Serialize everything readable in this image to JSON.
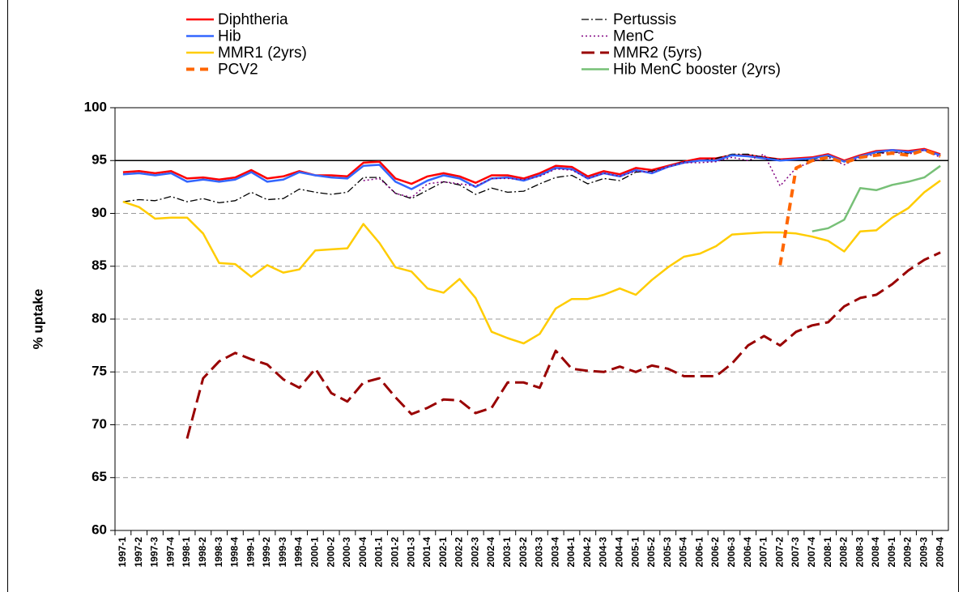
{
  "chart_data": {
    "type": "line",
    "y_label": "% uptake",
    "categories": [
      "1997-1",
      "1997-2",
      "1997-3",
      "1997-4",
      "1998-1",
      "1998-2",
      "1998-3",
      "1998-4",
      "1999-1",
      "1999-2",
      "1999-3",
      "1999-4",
      "2000-1",
      "2000-2",
      "2000-3",
      "2000-4",
      "2001-1",
      "2001-2",
      "2001-3",
      "2001-4",
      "2002-1",
      "2002-2",
      "2002-3",
      "2002-4",
      "2003-1",
      "2003-2",
      "2003-3",
      "2003-4",
      "2004-1",
      "2004-2",
      "2004-3",
      "2004-4",
      "2005-1",
      "2005-2",
      "2005-3",
      "2005-4",
      "2006-1",
      "2006-2",
      "2006-3",
      "2006-4",
      "2007-1",
      "2007-2",
      "2007-3",
      "2007-4",
      "2008-1",
      "2008-2",
      "2008-3",
      "2008-4",
      "2009-1",
      "2009-2",
      "2009-3",
      "2009-4"
    ],
    "ylim": [
      60,
      100
    ],
    "yticks": [
      60,
      65,
      70,
      75,
      80,
      85,
      90,
      95,
      100
    ],
    "grid": true,
    "target_line": 95,
    "series": [
      {
        "name": "Diphtheria",
        "color": "#ff0000",
        "style": "solid",
        "values": [
          93.9,
          94.0,
          93.8,
          94.0,
          93.3,
          93.4,
          93.2,
          93.4,
          94.1,
          93.3,
          93.5,
          94.0,
          93.6,
          93.6,
          93.5,
          94.8,
          94.9,
          93.3,
          92.8,
          93.5,
          93.8,
          93.5,
          92.9,
          93.6,
          93.6,
          93.3,
          93.8,
          94.5,
          94.4,
          93.5,
          94.0,
          93.7,
          94.3,
          94.1,
          94.5,
          94.9,
          95.2,
          95.2,
          95.5,
          95.5,
          95.3,
          95.1,
          95.2,
          95.3,
          95.6,
          95.0,
          95.5,
          95.9,
          96.0,
          95.9,
          96.1,
          95.6
        ]
      },
      {
        "name": "Pertussis",
        "color": "#000000",
        "style": "dash-dot",
        "values": [
          91.1,
          91.3,
          91.2,
          91.6,
          91.1,
          91.4,
          91.0,
          91.2,
          92.0,
          91.3,
          91.4,
          92.3,
          92.0,
          91.8,
          92.0,
          93.4,
          93.4,
          91.9,
          91.4,
          92.2,
          93.0,
          92.7,
          91.8,
          92.4,
          92.0,
          92.1,
          92.8,
          93.4,
          93.6,
          92.8,
          93.3,
          93.1,
          93.9,
          94.0,
          94.4,
          94.9,
          95.0,
          95.2,
          95.6,
          95.6,
          95.3,
          95.1,
          95.0,
          95.1,
          95.4,
          94.9,
          95.4,
          95.7,
          95.8,
          95.7,
          96.0,
          95.5
        ]
      },
      {
        "name": "Hib",
        "color": "#3366ff",
        "style": "solid",
        "values": [
          93.7,
          93.8,
          93.6,
          93.8,
          93.0,
          93.2,
          93.0,
          93.2,
          93.9,
          93.0,
          93.2,
          93.9,
          93.6,
          93.4,
          93.3,
          94.5,
          94.6,
          93.0,
          92.3,
          93.1,
          93.6,
          93.3,
          92.5,
          93.3,
          93.4,
          93.1,
          93.6,
          94.3,
          94.2,
          93.3,
          93.8,
          93.5,
          94.1,
          93.8,
          94.4,
          94.8,
          95.0,
          95.0,
          95.5,
          95.4,
          95.2,
          95.0,
          95.1,
          95.2,
          95.5,
          94.9,
          95.4,
          95.8,
          96.0,
          95.8,
          96.0,
          95.5
        ]
      },
      {
        "name": "MenC",
        "color": "#800080",
        "style": "dotted",
        "values": [
          null,
          null,
          null,
          null,
          null,
          null,
          null,
          null,
          null,
          null,
          null,
          null,
          null,
          null,
          null,
          93.1,
          93.3,
          91.9,
          91.5,
          92.8,
          93.0,
          92.8,
          92.6,
          93.3,
          93.3,
          93.2,
          93.5,
          94.2,
          94.1,
          93.3,
          93.8,
          93.5,
          94.0,
          93.9,
          94.4,
          94.8,
          94.8,
          94.9,
          95.3,
          95.0,
          95.6,
          92.6,
          94.3,
          94.9,
          95.3,
          94.6,
          95.3,
          95.6,
          95.8,
          95.6,
          96.0,
          95.3
        ]
      },
      {
        "name": "MMR1 (2yrs)",
        "color": "#ffcc00",
        "style": "solid",
        "values": [
          91.1,
          90.6,
          89.5,
          89.6,
          89.6,
          88.1,
          85.3,
          85.2,
          84.0,
          85.1,
          84.4,
          84.7,
          86.5,
          86.6,
          86.7,
          89.0,
          87.2,
          84.9,
          84.5,
          82.9,
          82.5,
          83.8,
          82.0,
          78.8,
          78.2,
          77.7,
          78.6,
          81.0,
          81.9,
          81.9,
          82.3,
          82.9,
          82.3,
          83.7,
          84.9,
          85.9,
          86.2,
          86.9,
          88.0,
          88.1,
          88.2,
          88.2,
          88.1,
          87.8,
          87.4,
          86.4,
          88.3,
          88.4,
          89.6,
          90.5,
          92.0,
          93.1
        ]
      },
      {
        "name": "MMR2 (5yrs)",
        "color": "#990000",
        "style": "long-dash",
        "values": [
          null,
          null,
          null,
          null,
          68.7,
          74.4,
          76.0,
          76.8,
          76.2,
          75.7,
          74.3,
          73.5,
          75.3,
          73.0,
          72.2,
          74.0,
          74.4,
          72.6,
          71.0,
          71.6,
          72.4,
          72.3,
          71.1,
          71.6,
          74.0,
          74.0,
          73.5,
          77.0,
          75.3,
          75.1,
          75.0,
          75.5,
          75.0,
          75.6,
          75.3,
          74.6,
          74.6,
          74.6,
          75.8,
          77.5,
          78.4,
          77.5,
          78.8,
          79.4,
          79.7,
          81.2,
          82.0,
          82.3,
          83.3,
          84.6,
          85.6,
          86.3
        ]
      },
      {
        "name": "PCV2",
        "color": "#ff6600",
        "style": "thick-dash",
        "values": [
          null,
          null,
          null,
          null,
          null,
          null,
          null,
          null,
          null,
          null,
          null,
          null,
          null,
          null,
          null,
          null,
          null,
          null,
          null,
          null,
          null,
          null,
          null,
          null,
          null,
          null,
          null,
          null,
          null,
          null,
          null,
          null,
          null,
          null,
          null,
          null,
          null,
          null,
          null,
          null,
          null,
          85.1,
          94.3,
          95.0,
          95.3,
          94.8,
          95.3,
          95.5,
          95.7,
          95.5,
          96.0,
          95.4
        ]
      },
      {
        "name": "Hib MenC booster (2yrs)",
        "color": "#77c077",
        "style": "solid",
        "values": [
          null,
          null,
          null,
          null,
          null,
          null,
          null,
          null,
          null,
          null,
          null,
          null,
          null,
          null,
          null,
          null,
          null,
          null,
          null,
          null,
          null,
          null,
          null,
          null,
          null,
          null,
          null,
          null,
          null,
          null,
          null,
          null,
          null,
          null,
          null,
          null,
          null,
          null,
          null,
          null,
          null,
          null,
          null,
          88.3,
          88.6,
          89.4,
          92.4,
          92.2,
          92.7,
          93.0,
          93.4,
          94.5
        ]
      }
    ]
  }
}
